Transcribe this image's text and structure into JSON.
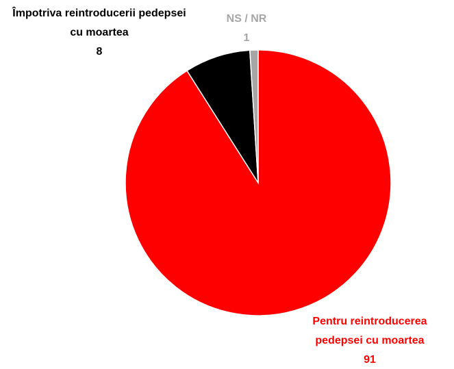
{
  "chart_data": {
    "type": "pie",
    "categories": [
      "Pentru reintroducerea pedepsei cu moartea",
      "Împotriva reintroducerii pedepsei cu moartea",
      "NS / NR"
    ],
    "values": [
      91,
      8,
      1
    ],
    "colors": [
      "#ff0000",
      "#000000",
      "#a6a6a6"
    ]
  }
}
